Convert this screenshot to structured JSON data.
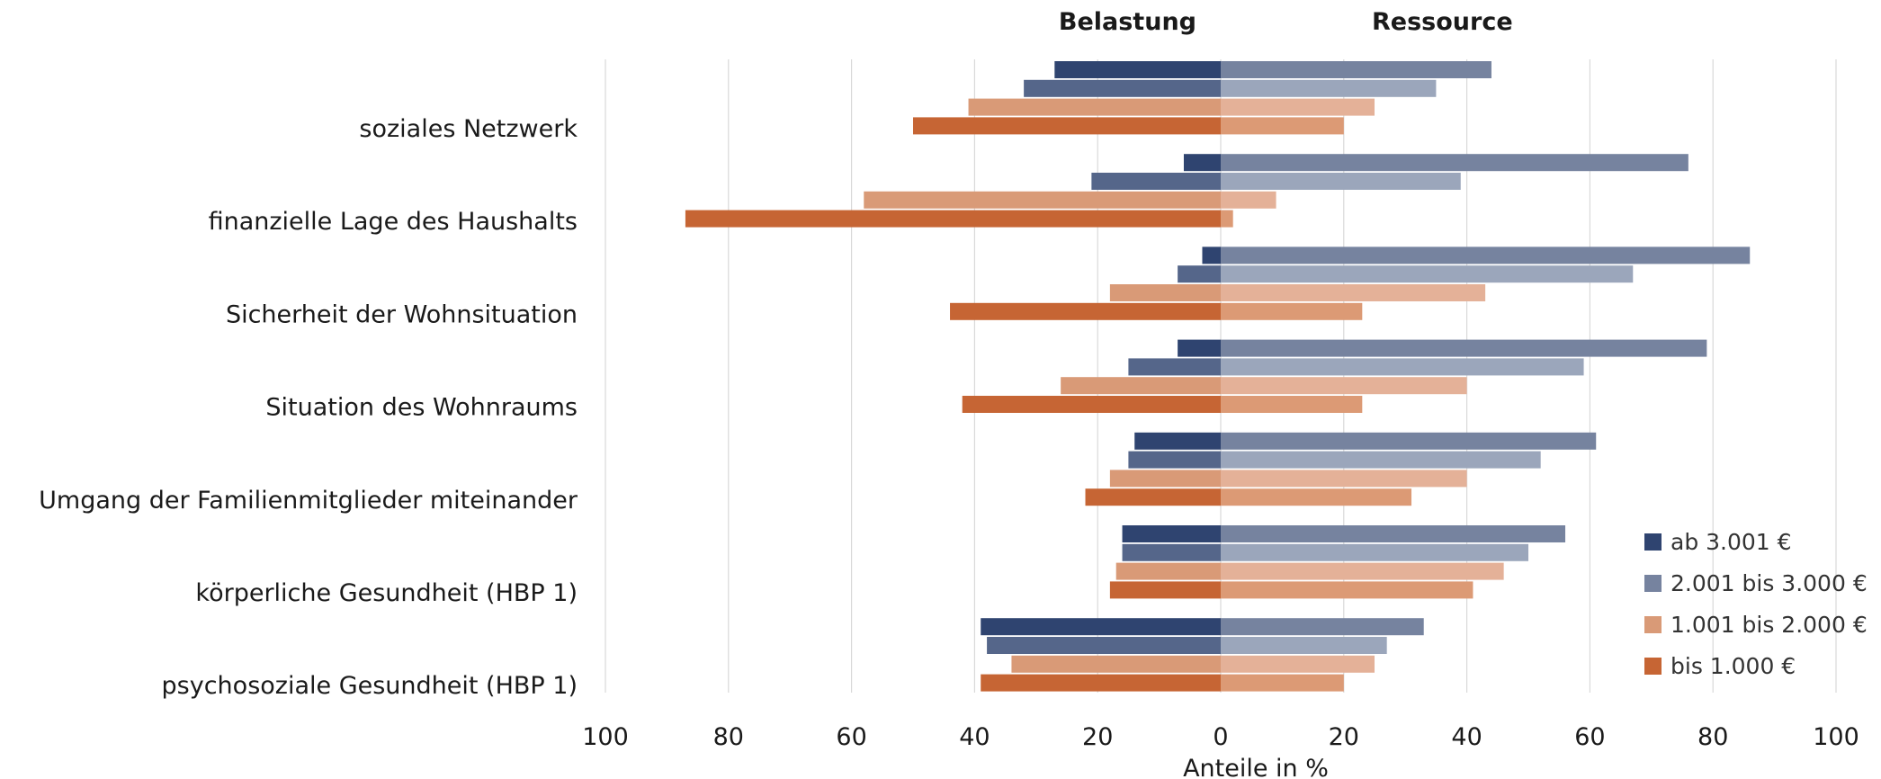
{
  "chart_data": {
    "type": "bar",
    "orientation": "horizontal-diverging",
    "left_title": "Belastung",
    "right_title": "Ressource",
    "xlabel": "Anteile in %",
    "xlim": [
      -100,
      100
    ],
    "xticks": [
      -100,
      -80,
      -60,
      -40,
      -20,
      0,
      20,
      40,
      60,
      80,
      100
    ],
    "xtick_labels": [
      "100",
      "80",
      "60",
      "40",
      "20",
      "0",
      "20",
      "40",
      "60",
      "80",
      "100"
    ],
    "grid": true,
    "legend_position": "bottom-right",
    "categories": [
      "soziales Netzwerk",
      "finanzielle Lage des Haushalts",
      "Sicherheit der Wohnsituation",
      "Situation des Wohnraums",
      "Umgang der Familienmitglieder miteinander",
      "körperliche Gesundheit (HBP 1)",
      "psychosoziale Gesundheit (HBP 1)"
    ],
    "series": [
      {
        "name": "ab 3.001 €",
        "color_left": "#2f4470",
        "color_right": "#76839f",
        "belastung": [
          27,
          6,
          3,
          7,
          14,
          16,
          39
        ],
        "ressource": [
          44,
          76,
          86,
          79,
          61,
          56,
          33
        ]
      },
      {
        "name": "2.001 bis 3.000 €",
        "color_left": "#55668a",
        "color_right": "#9ba6bb",
        "belastung": [
          32,
          21,
          7,
          15,
          15,
          16,
          38
        ],
        "ressource": [
          35,
          39,
          67,
          59,
          52,
          50,
          27
        ]
      },
      {
        "name": "1.001 bis 2.000 €",
        "color_left": "#d99a77",
        "color_right": "#e4b198",
        "belastung": [
          41,
          58,
          18,
          26,
          18,
          17,
          34
        ],
        "ressource": [
          25,
          9,
          43,
          40,
          40,
          46,
          25
        ]
      },
      {
        "name": "bis 1.000 €",
        "color_left": "#c66534",
        "color_right": "#dc9a75",
        "belastung": [
          50,
          87,
          44,
          42,
          22,
          18,
          39
        ],
        "ressource": [
          20,
          2,
          23,
          23,
          31,
          41,
          20
        ]
      }
    ],
    "legend": [
      {
        "label": "ab 3.001 €",
        "color": "#2f4470"
      },
      {
        "label": "2.001 bis 3.000 €",
        "color": "#76839f"
      },
      {
        "label": "1.001 bis 2.000 €",
        "color": "#d99a77"
      },
      {
        "label": "bis 1.000 €",
        "color": "#c66534"
      }
    ]
  }
}
